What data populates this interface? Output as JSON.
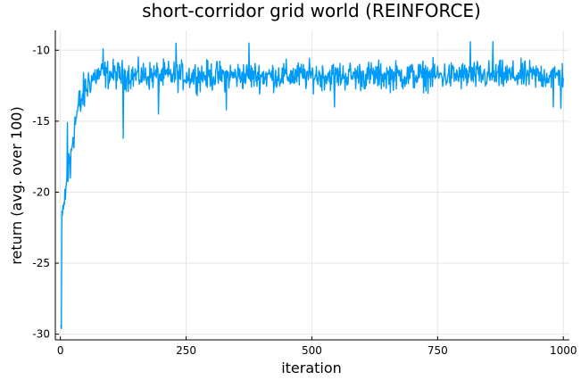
{
  "chart_data": {
    "type": "line",
    "title": "short-corridor grid world (REINFORCE)",
    "xlabel": "iteration",
    "ylabel": "return (avg. over 100)",
    "xlim": [
      -10,
      1012
    ],
    "ylim": [
      -30.4,
      -8.6
    ],
    "xticks": [
      0,
      250,
      500,
      750,
      1000
    ],
    "xtick_labels": [
      "0",
      "250",
      "500",
      "750",
      "1000"
    ],
    "yticks": [
      -30,
      -25,
      -20,
      -15,
      -10
    ],
    "ytick_labels": [
      "-30",
      "-25",
      "-20",
      "-15",
      "-10"
    ],
    "grid": true,
    "legend": "none",
    "series": [
      {
        "color": "#009af9",
        "x_start": 1,
        "x_end": 1000,
        "n_points": 1000,
        "trend": {
          "x": [
            1,
            2,
            3,
            5,
            8,
            12,
            16,
            20,
            25,
            30,
            35,
            40,
            45,
            50,
            55,
            60,
            70,
            80,
            100,
            150,
            200,
            300,
            400,
            500,
            600,
            700,
            800,
            900,
            1000
          ],
          "y": [
            -29.5,
            -25.5,
            -22.5,
            -21.5,
            -20.5,
            -19.5,
            -18.5,
            -17.5,
            -16.0,
            -15.0,
            -14.2,
            -13.6,
            -13.2,
            -12.8,
            -12.4,
            -12.1,
            -11.8,
            -11.7,
            -11.7,
            -11.8,
            -11.8,
            -11.8,
            -11.8,
            -11.8,
            -11.8,
            -11.8,
            -11.8,
            -11.8,
            -11.8
          ]
        },
        "noise_amplitude": 0.9,
        "selected_points": {
          "x": [
            2,
            6,
            10,
            14,
            20,
            40,
            85,
            125,
            195,
            230,
            330,
            375,
            545,
            815,
            860,
            980,
            995
          ],
          "y": [
            -29.6,
            -21.2,
            -20.5,
            -15.1,
            -19.0,
            -14.3,
            -9.9,
            -16.2,
            -14.5,
            -9.5,
            -14.2,
            -9.5,
            -14.0,
            -9.4,
            -9.4,
            -14.0,
            -14.1
          ]
        }
      }
    ]
  }
}
